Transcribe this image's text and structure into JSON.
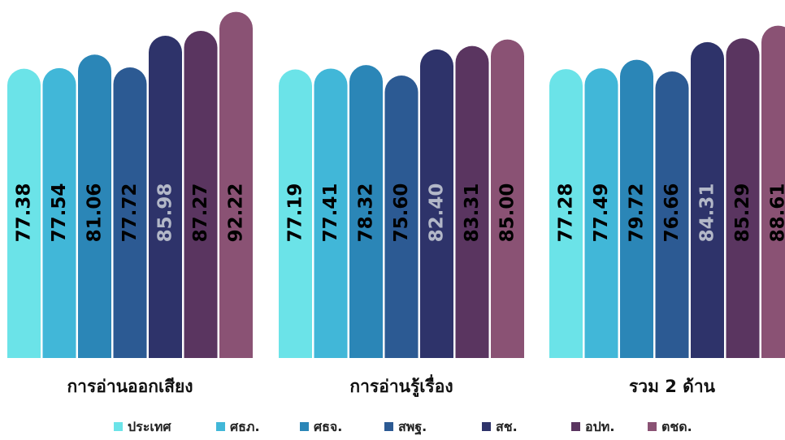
{
  "chart_data": {
    "type": "bar",
    "categories": [
      "การอ่านออกเสียง",
      "การอ่านรู้เรื่อง",
      "รวม 2 ด้าน"
    ],
    "series": [
      {
        "name": "ประเทศ",
        "color": "#6be3e8",
        "label_color": "#000000",
        "values": [
          77.38,
          77.19,
          77.28
        ]
      },
      {
        "name": "ศธภ.",
        "color": "#41b7d8",
        "label_color": "#000000",
        "values": [
          77.54,
          77.41,
          77.49
        ]
      },
      {
        "name": "ศธจ.",
        "color": "#2b86b7",
        "label_color": "#000000",
        "values": [
          81.06,
          78.32,
          79.72
        ]
      },
      {
        "name": "สพฐ.",
        "color": "#2c5a93",
        "label_color": "#000000",
        "values": [
          77.72,
          75.6,
          76.66
        ]
      },
      {
        "name": "สช.",
        "color": "#2e336a",
        "label_color": "#b3b8c8",
        "values": [
          85.98,
          82.4,
          84.31
        ]
      },
      {
        "name": "อปท.",
        "color": "#5a3560",
        "label_color": "#000000",
        "values": [
          87.27,
          83.31,
          85.29
        ]
      },
      {
        "name": "ตชด.",
        "color": "#8a5274",
        "label_color": "#000000",
        "values": [
          92.22,
          85.0,
          88.61
        ]
      }
    ],
    "value_labels": [
      [
        "77.38",
        "77.19",
        "77.28"
      ],
      [
        "77.54",
        "77.41",
        "77.49"
      ],
      [
        "81.06",
        "78.32",
        "79.72"
      ],
      [
        "77.72",
        "75.60",
        "76.66"
      ],
      [
        "85.98",
        "82.40",
        "84.31"
      ],
      [
        "87.27",
        "83.31",
        "85.29"
      ],
      [
        "92.22",
        "85.00",
        "88.61"
      ]
    ],
    "legend_position": "bottom",
    "grid": false,
    "axis_visible": false
  }
}
